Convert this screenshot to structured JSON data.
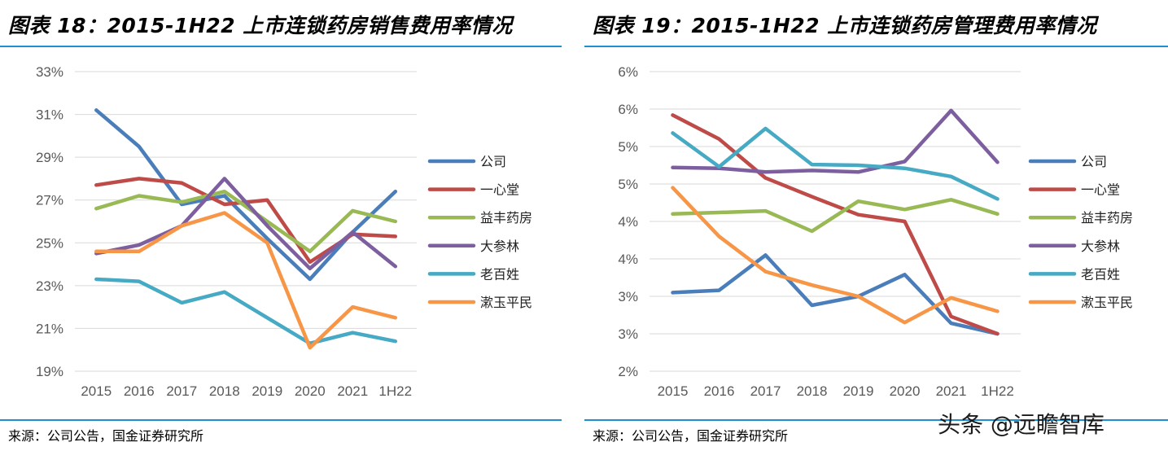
{
  "chart_data": [
    {
      "type": "line",
      "title": "图表 18：2015-1H22 上市连锁药房销售费用率情况",
      "categories": [
        "2015",
        "2016",
        "2017",
        "2018",
        "2019",
        "2020",
        "2021",
        "1H22"
      ],
      "y_ticks": [
        "33%",
        "31%",
        "29%",
        "27%",
        "25%",
        "23%",
        "21%",
        "19%"
      ],
      "ylim": [
        19,
        33
      ],
      "grid": true,
      "legend_position": "right",
      "source": "来源：公司公告，国金证券研究所",
      "series": [
        {
          "name": "公司",
          "color": "#4a7ebb",
          "values": [
            31.2,
            29.5,
            26.8,
            27.2,
            25.2,
            23.3,
            25.5,
            27.4
          ]
        },
        {
          "name": "一心堂",
          "color": "#be4b48",
          "values": [
            27.7,
            28.0,
            27.8,
            26.8,
            27.0,
            24.1,
            25.4,
            25.3
          ]
        },
        {
          "name": "益丰药房",
          "color": "#98b954",
          "values": [
            26.6,
            27.2,
            26.9,
            27.4,
            26.0,
            24.6,
            26.5,
            26.0
          ]
        },
        {
          "name": "大参林",
          "color": "#7d5fa0",
          "values": [
            24.5,
            24.9,
            25.8,
            28.0,
            25.8,
            23.8,
            25.5,
            23.9
          ]
        },
        {
          "name": "老百姓",
          "color": "#46aac5",
          "values": [
            23.3,
            23.2,
            22.2,
            22.7,
            21.5,
            20.3,
            20.8,
            20.4
          ]
        },
        {
          "name": "漱玉平民",
          "color": "#f79646",
          "values": [
            24.6,
            24.6,
            25.8,
            26.4,
            25.0,
            20.1,
            22.0,
            21.5
          ]
        }
      ]
    },
    {
      "type": "line",
      "title": "图表 19：2015-1H22 上市连锁药房管理费用率情况",
      "categories": [
        "2015",
        "2016",
        "2017",
        "2018",
        "2019",
        "2020",
        "2021",
        "1H22"
      ],
      "y_ticks": [
        "6%",
        "6%",
        "5%",
        "5%",
        "4%",
        "4%",
        "3%",
        "3%",
        "2%"
      ],
      "ylim": [
        2.0,
        6.0
      ],
      "grid": true,
      "legend_position": "right",
      "source": "来源：公司公告，国金证券研究所",
      "series": [
        {
          "name": "公司",
          "color": "#4a7ebb",
          "values": [
            3.05,
            3.08,
            3.55,
            2.88,
            3.0,
            3.29,
            2.64,
            2.5
          ]
        },
        {
          "name": "一心堂",
          "color": "#be4b48",
          "values": [
            5.42,
            5.1,
            4.58,
            4.33,
            4.09,
            4.0,
            2.73,
            2.5
          ]
        },
        {
          "name": "益丰药房",
          "color": "#98b954",
          "values": [
            4.1,
            4.12,
            4.14,
            3.87,
            4.27,
            4.16,
            4.29,
            4.1
          ]
        },
        {
          "name": "大参林",
          "color": "#7d5fa0",
          "values": [
            4.72,
            4.71,
            4.66,
            4.68,
            4.66,
            4.8,
            5.48,
            4.79
          ]
        },
        {
          "name": "老百姓",
          "color": "#46aac5",
          "values": [
            5.18,
            4.73,
            5.24,
            4.76,
            4.75,
            4.71,
            4.6,
            4.3
          ]
        },
        {
          "name": "漱玉平民",
          "color": "#f79646",
          "values": [
            4.45,
            3.8,
            3.33,
            3.15,
            3.0,
            2.65,
            2.98,
            2.8
          ]
        }
      ]
    }
  ],
  "watermark": "头条 @远瞻智库"
}
